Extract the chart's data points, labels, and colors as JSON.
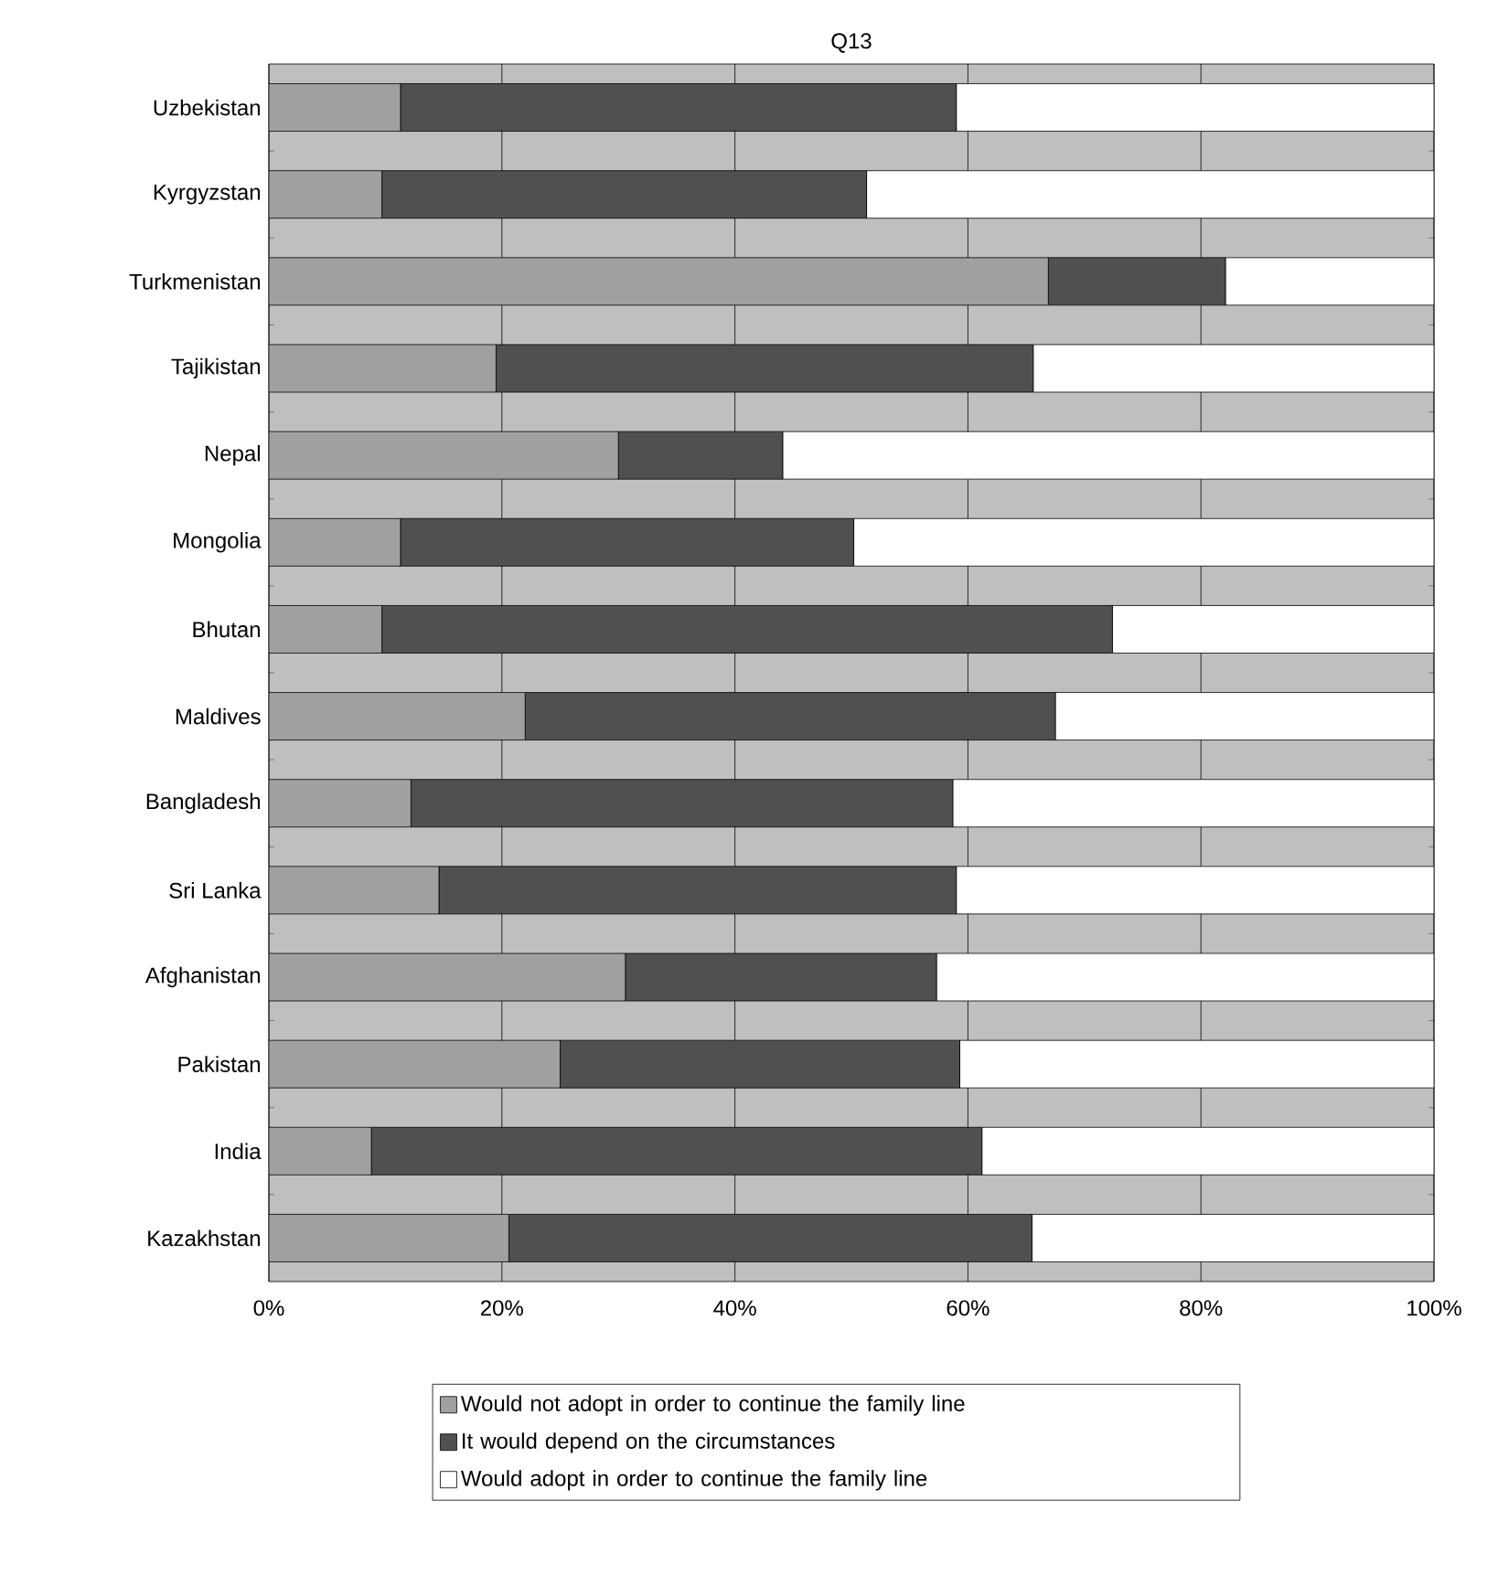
{
  "chart_data": {
    "type": "bar",
    "title": "Q13",
    "orientation": "horizontal",
    "stacked": true,
    "categories": [
      "Uzbekistan",
      "Kyrgyzstan",
      "Turkmenistan",
      "Tajikistan",
      "Nepal",
      "Mongolia",
      "Bhutan",
      "Maldives",
      "Bangladesh",
      "Sri Lanka",
      "Afghanistan",
      "Pakistan",
      "India",
      "Kazakhstan"
    ],
    "series": [
      {
        "name": "Would not adopt in order to continue the family line",
        "color": "#a0a0a0",
        "values": [
          11.3,
          9.7,
          66.9,
          19.5,
          30.0,
          11.3,
          9.7,
          22.0,
          12.2,
          14.6,
          30.6,
          25.0,
          8.8,
          20.6
        ]
      },
      {
        "name": "It would depend on the circumstances",
        "color": "#505050",
        "values": [
          47.7,
          41.6,
          15.2,
          46.1,
          14.1,
          38.9,
          62.7,
          45.5,
          46.5,
          44.4,
          26.7,
          34.3,
          52.4,
          44.9
        ]
      },
      {
        "name": "Would adopt in order to continue the family line",
        "color": "#ffffff",
        "values": [
          41.0,
          48.7,
          17.9,
          34.4,
          55.9,
          49.8,
          27.6,
          32.5,
          41.3,
          41.0,
          42.7,
          40.7,
          38.8,
          34.5
        ]
      }
    ],
    "xlim": [
      0,
      100
    ],
    "xticks": [
      {
        "value": 0,
        "label": "0%"
      },
      {
        "value": 20,
        "label": "20%"
      },
      {
        "value": 40,
        "label": "40%"
      },
      {
        "value": 60,
        "label": "60%"
      },
      {
        "value": 80,
        "label": "80%"
      },
      {
        "value": 100,
        "label": "100%"
      }
    ],
    "grid": "x",
    "legend": "bottom"
  }
}
